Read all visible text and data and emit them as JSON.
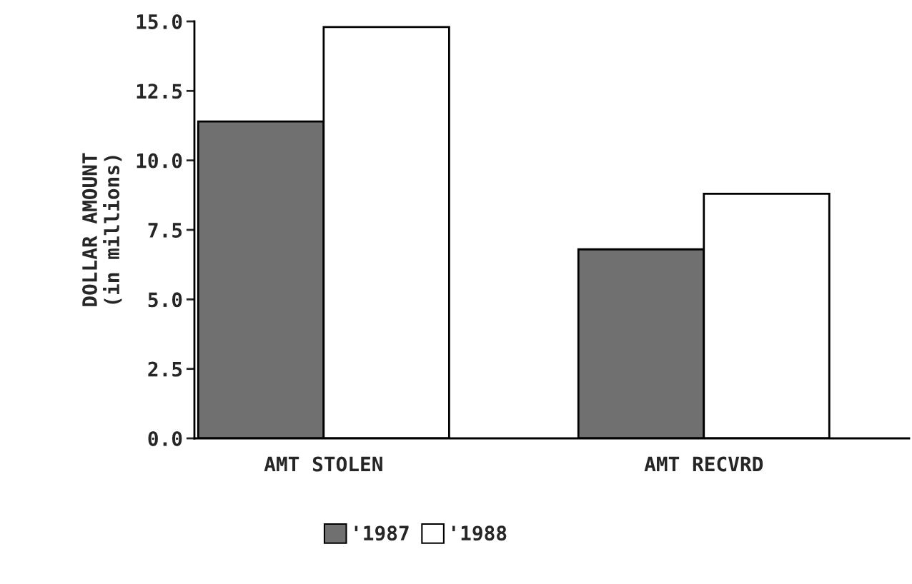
{
  "chart_data": {
    "type": "bar",
    "categories": [
      "AMT STOLEN",
      "AMT RECVRD"
    ],
    "ylabel": "DOLLAR AMOUNT\n(in millions)",
    "series": [
      {
        "name": "'1987",
        "color": "#707070",
        "values": [
          11.4,
          6.8
        ]
      },
      {
        "name": "'1988",
        "color": "#ffffff",
        "values": [
          14.8,
          8.8
        ]
      }
    ],
    "ylim": [
      0,
      15
    ],
    "yticks": [
      {
        "value": 0,
        "label": "0.0"
      },
      {
        "value": 2.5,
        "label": "2.5"
      },
      {
        "value": 5,
        "label": "5.0"
      },
      {
        "value": 7.5,
        "label": "7.5"
      },
      {
        "value": 10,
        "label": "10.0"
      },
      {
        "value": 12.5,
        "label": "12.5"
      },
      {
        "value": 15,
        "label": "15.0"
      }
    ],
    "grid": false,
    "legend": "bottom"
  }
}
